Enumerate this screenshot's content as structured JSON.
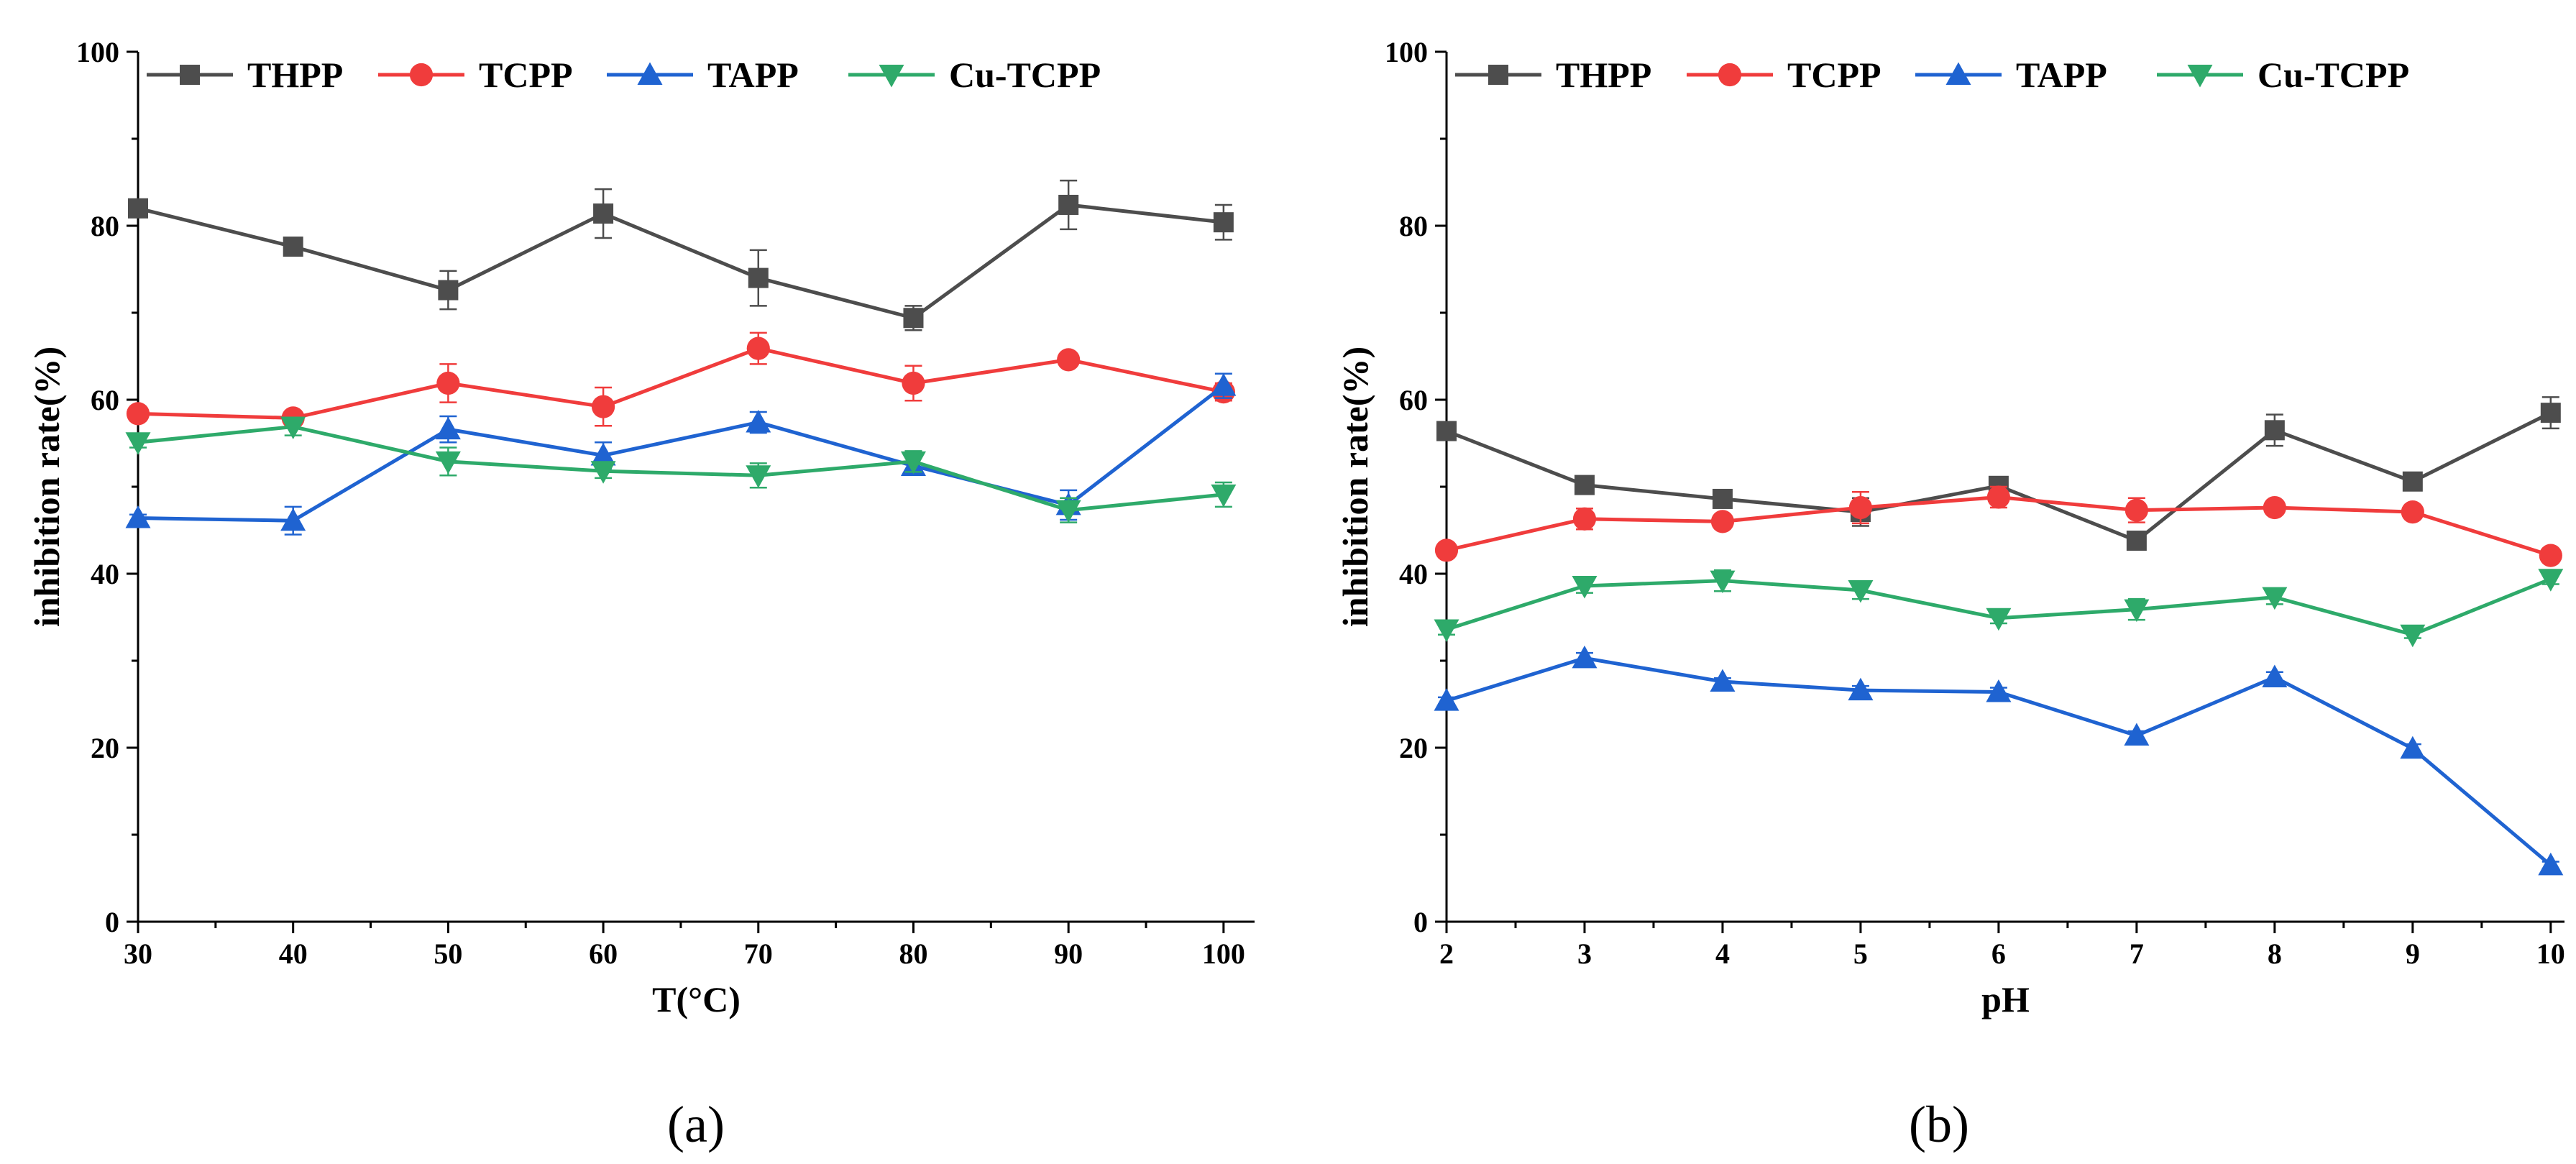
{
  "chart_data": [
    {
      "type": "line",
      "panel_label": "(a)",
      "xlabel": "T(°C)",
      "ylabel": "inhibition rate(%)",
      "xlim": [
        30,
        102
      ],
      "ylim": [
        0,
        100
      ],
      "xticks": [
        "30",
        "40",
        "50",
        "60",
        "70",
        "80",
        "90",
        "100"
      ],
      "yticks": [
        "0",
        "20",
        "40",
        "60",
        "80",
        "100"
      ],
      "legend_position": "top",
      "x": [
        30,
        40,
        50,
        60,
        70,
        80,
        90,
        100
      ],
      "series": [
        {
          "name": "THPP",
          "color": "#4d4d4d",
          "marker": "square",
          "values": [
            82.0,
            77.6,
            72.6,
            81.4,
            74.0,
            69.4,
            82.4,
            80.4
          ],
          "errors": [
            0.8,
            1.0,
            2.2,
            2.8,
            3.2,
            1.4,
            2.8,
            2.0
          ]
        },
        {
          "name": "TCPP",
          "color": "#f03c3c",
          "marker": "circle",
          "values": [
            58.4,
            57.9,
            61.9,
            59.2,
            65.9,
            61.9,
            64.6,
            60.9
          ],
          "errors": [
            0.8,
            0.8,
            2.2,
            2.2,
            1.8,
            2.0,
            0.7,
            1.0
          ]
        },
        {
          "name": "TAPP",
          "color": "#1f63d1",
          "marker": "triangle-up",
          "values": [
            46.4,
            46.1,
            56.6,
            53.6,
            57.4,
            52.4,
            47.9,
            61.6
          ],
          "errors": [
            0.4,
            1.6,
            1.5,
            1.5,
            1.2,
            1.0,
            1.7,
            1.4
          ]
        },
        {
          "name": "Cu-TCPP",
          "color": "#2eaa6a",
          "marker": "triangle-down",
          "values": [
            55.1,
            56.9,
            52.9,
            51.8,
            51.3,
            52.9,
            47.3,
            49.1
          ],
          "errors": [
            0.6,
            1.0,
            1.6,
            0.8,
            1.4,
            1.2,
            1.4,
            1.4
          ]
        }
      ]
    },
    {
      "type": "line",
      "panel_label": "(b)",
      "xlabel": "pH",
      "ylabel": "inhibition rate(%)",
      "xlim": [
        2,
        10.1
      ],
      "ylim": [
        0,
        100
      ],
      "xticks": [
        "2",
        "3",
        "4",
        "5",
        "6",
        "7",
        "8",
        "9",
        "10"
      ],
      "yticks": [
        "0",
        "20",
        "40",
        "60",
        "80",
        "100"
      ],
      "legend_position": "top",
      "x": [
        2,
        3,
        4,
        5,
        6,
        7,
        8,
        9,
        10
      ],
      "series": [
        {
          "name": "THPP",
          "color": "#4d4d4d",
          "marker": "square",
          "values": [
            56.4,
            50.2,
            48.6,
            47.1,
            50.1,
            43.8,
            56.5,
            50.6,
            58.5
          ],
          "errors": [
            1.0,
            0.5,
            1.0,
            1.6,
            0.6,
            0.8,
            1.8,
            0.6,
            1.8
          ]
        },
        {
          "name": "TCPP",
          "color": "#f03c3c",
          "marker": "circle",
          "values": [
            42.7,
            46.3,
            46.0,
            47.6,
            48.8,
            47.3,
            47.6,
            47.1,
            42.1
          ],
          "errors": [
            0.4,
            1.2,
            0.8,
            1.8,
            1.2,
            1.4,
            0.6,
            0.6,
            0.6
          ]
        },
        {
          "name": "TAPP",
          "color": "#1f63d1",
          "marker": "triangle-up",
          "values": [
            25.4,
            30.3,
            27.6,
            26.6,
            26.4,
            21.4,
            28.1,
            19.9,
            6.5
          ],
          "errors": [
            0.4,
            0.6,
            0.4,
            0.5,
            0.5,
            0.5,
            0.6,
            0.5,
            0.4
          ]
        },
        {
          "name": "Cu-TCPP",
          "color": "#2eaa6a",
          "marker": "triangle-down",
          "values": [
            33.6,
            38.6,
            39.2,
            38.1,
            34.9,
            35.9,
            37.3,
            33.0,
            39.4
          ],
          "errors": [
            0.6,
            0.8,
            1.2,
            1.0,
            0.6,
            1.2,
            0.8,
            0.4,
            0.6
          ]
        }
      ]
    }
  ]
}
